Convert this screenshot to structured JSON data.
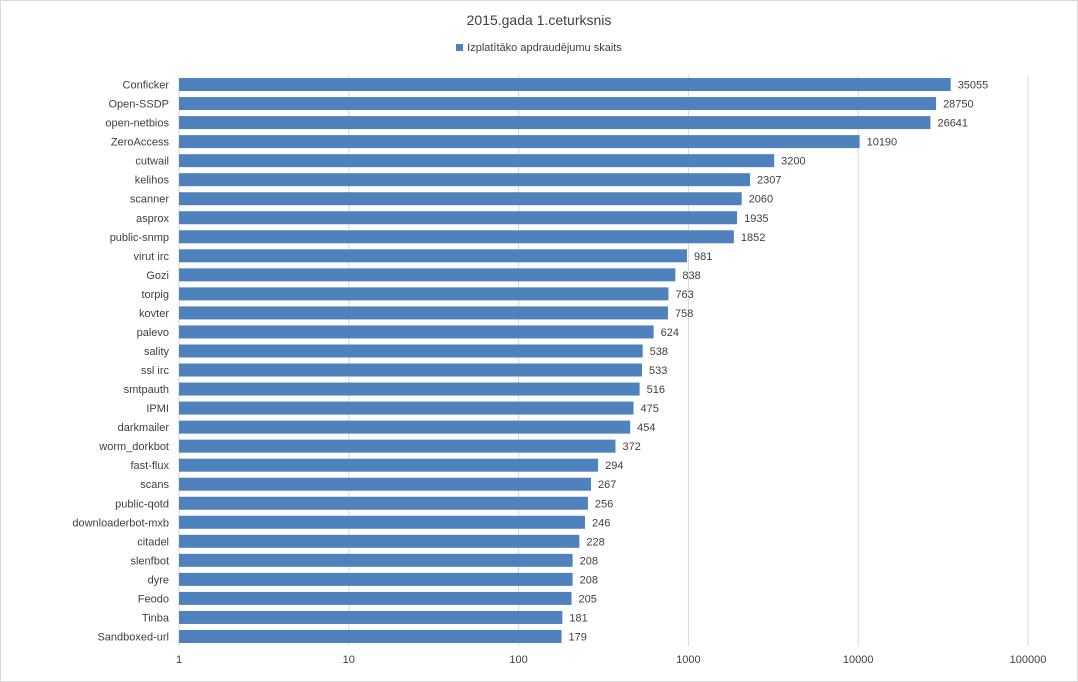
{
  "chart_data": {
    "type": "bar",
    "orientation": "horizontal",
    "title": "2015.gada 1.ceturksnis",
    "legend_position": "top",
    "series": [
      {
        "name": "Izplatītāko apdraudējumu skaits",
        "color": "#4f81bd",
        "values": [
          35055,
          28750,
          26641,
          10190,
          3200,
          2307,
          2060,
          1935,
          1852,
          981,
          838,
          763,
          758,
          624,
          538,
          533,
          516,
          475,
          454,
          372,
          294,
          267,
          256,
          246,
          228,
          208,
          208,
          205,
          181,
          179
        ]
      }
    ],
    "categories": [
      "Conficker",
      "Open-SSDP",
      "open-netbios",
      "ZeroAccess",
      "cutwail",
      "kelihos",
      "scanner",
      "asprox",
      "public-snmp",
      "virut irc",
      "Gozi",
      "torpig",
      "kovter",
      "palevo",
      "sality",
      "ssl irc",
      "smtpauth",
      "IPMI",
      "darkmailer",
      "worm_dorkbot",
      "fast-flux",
      "scans",
      "public-qotd",
      "downloaderbot-mxb",
      "citadel",
      "slenfbot",
      "dyre",
      "Feodo",
      "Tinba",
      "Sandboxed-url"
    ],
    "x_scale": "log",
    "xlim": [
      1,
      100000
    ],
    "x_ticks": [
      "1",
      "10",
      "100",
      "1000",
      "10000",
      "100000"
    ],
    "xlabel": "",
    "ylabel": "",
    "grid": "vertical",
    "data_labels": true
  }
}
